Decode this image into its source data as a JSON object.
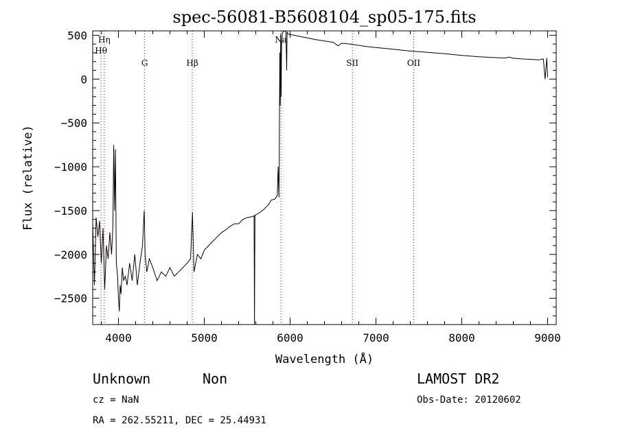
{
  "chart_data": {
    "type": "line",
    "title": "spec-56081-B5608104_sp05-175.fits",
    "xlabel": "Wavelength (Å)",
    "ylabel": "Flux (relative)",
    "xlim": [
      3700,
      9100
    ],
    "ylim": [
      -2800,
      550
    ],
    "xticks": [
      4000,
      5000,
      6000,
      7000,
      8000,
      9000
    ],
    "yticks": [
      500,
      0,
      -500,
      -1000,
      -1500,
      -2000,
      -2500
    ],
    "grid": false,
    "series": [
      {
        "color": "#000000",
        "x": [
          3700,
          3720,
          3740,
          3760,
          3780,
          3800,
          3820,
          3840,
          3860,
          3880,
          3900,
          3920,
          3935,
          3945,
          3955,
          3965,
          3975,
          3990,
          4000,
          4010,
          4020,
          4030,
          4045,
          4060,
          4080,
          4100,
          4130,
          4160,
          4190,
          4220,
          4250,
          4280,
          4300,
          4310,
          4330,
          4360,
          4400,
          4450,
          4500,
          4550,
          4600,
          4650,
          4700,
          4750,
          4800,
          4840,
          4862,
          4880,
          4920,
          4960,
          5000,
          5050,
          5100,
          5150,
          5200,
          5250,
          5300,
          5350,
          5400,
          5450,
          5500,
          5550,
          5580,
          5585,
          5590,
          5600,
          5650,
          5700,
          5750,
          5780,
          5820,
          5850,
          5860,
          5870,
          5880,
          5885,
          5890,
          5893,
          5896,
          5900,
          5910,
          5930,
          5950,
          5960,
          5965,
          5970,
          5990,
          6050,
          6100,
          6200,
          6300,
          6400,
          6500,
          6560,
          6600,
          6700,
          6800,
          6900,
          7000,
          7200,
          7400,
          7600,
          7800,
          8000,
          8200,
          8400,
          8500,
          8550,
          8600,
          8700,
          8800,
          8900,
          8950,
          8970,
          8990,
          9000
        ],
        "y": [
          -1650,
          -2350,
          -1580,
          -1800,
          -1620,
          -2100,
          -1700,
          -2400,
          -1900,
          -2050,
          -1750,
          -2000,
          -1680,
          -750,
          -1500,
          -800,
          -2100,
          -2250,
          -2500,
          -2650,
          -2350,
          -2450,
          -2150,
          -2300,
          -2250,
          -2350,
          -2100,
          -2300,
          -2000,
          -2350,
          -2100,
          -1900,
          -1500,
          -2000,
          -2200,
          -2050,
          -2150,
          -2300,
          -2200,
          -2250,
          -2150,
          -2250,
          -2200,
          -2150,
          -2100,
          -2050,
          -1520,
          -2200,
          -2000,
          -2050,
          -1950,
          -1900,
          -1850,
          -1800,
          -1750,
          -1720,
          -1680,
          -1650,
          -1650,
          -1600,
          -1580,
          -1570,
          -1560,
          -2800,
          -1550,
          -1550,
          -1520,
          -1480,
          -1430,
          -1380,
          -1370,
          -1330,
          -1000,
          -1350,
          300,
          -300,
          520,
          450,
          -200,
          380,
          530,
          560,
          545,
          100,
          540,
          520,
          510,
          500,
          490,
          470,
          450,
          435,
          420,
          380,
          410,
          400,
          385,
          370,
          360,
          340,
          320,
          305,
          290,
          270,
          255,
          245,
          240,
          250,
          238,
          230,
          225,
          220,
          230,
          0,
          240,
          20
        ]
      }
    ],
    "lines": [
      {
        "label": "Hη",
        "x": 3835
      },
      {
        "label": "Hθ",
        "x": 3797
      },
      {
        "label": "G",
        "x": 4305
      },
      {
        "label": "Hβ",
        "x": 4861
      },
      {
        "label": "Na",
        "x": 5893
      },
      {
        "label": "SII",
        "x": 6725
      },
      {
        "label": "OII",
        "x": 7440
      }
    ]
  },
  "info": {
    "object_class": "Unknown",
    "subclass": "Non",
    "survey": "LAMOST DR2",
    "cz": "cz = NaN",
    "obs_date": "Obs-Date: 20120602",
    "radec": "RA = 262.55211, DEC =  25.44931"
  }
}
